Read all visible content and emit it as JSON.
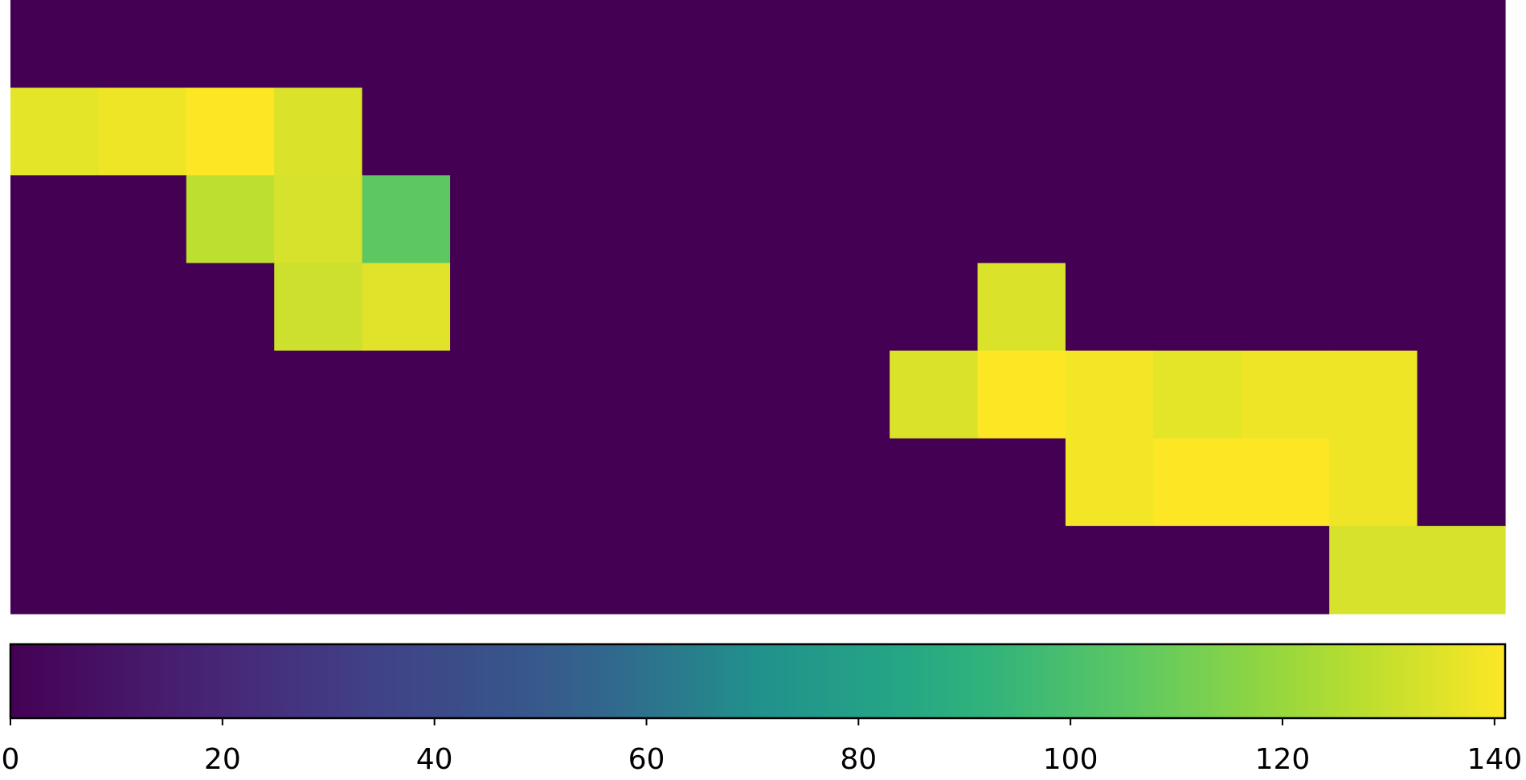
{
  "chart_data": {
    "type": "heatmap",
    "title": "",
    "xlabel": "",
    "ylabel": "",
    "rows": 7,
    "cols": 17,
    "colormap": "viridis",
    "vmin": 0,
    "vmax": 141,
    "values": [
      [
        0,
        0,
        0,
        0,
        0,
        0,
        0,
        0,
        0,
        0,
        0,
        0,
        0,
        0,
        0,
        0,
        0
      ],
      [
        136,
        138,
        141,
        134,
        0,
        0,
        0,
        0,
        0,
        0,
        0,
        0,
        0,
        0,
        0,
        0,
        0
      ],
      [
        0,
        0,
        128,
        133,
        106,
        0,
        0,
        0,
        0,
        0,
        0,
        0,
        0,
        0,
        0,
        0,
        0
      ],
      [
        0,
        0,
        0,
        131,
        135,
        0,
        0,
        0,
        0,
        0,
        0,
        134,
        0,
        0,
        0,
        0,
        0
      ],
      [
        0,
        0,
        0,
        0,
        0,
        0,
        0,
        0,
        0,
        0,
        134,
        141,
        139,
        136,
        138,
        138,
        0
      ],
      [
        0,
        0,
        0,
        0,
        0,
        0,
        0,
        0,
        0,
        0,
        0,
        0,
        139,
        141,
        141,
        138,
        0
      ],
      [
        0,
        0,
        0,
        0,
        0,
        0,
        0,
        0,
        0,
        0,
        0,
        0,
        0,
        0,
        0,
        133,
        133
      ]
    ],
    "colorbar": {
      "orientation": "horizontal",
      "range": [
        0,
        141
      ],
      "ticks": [
        0,
        20,
        40,
        60,
        80,
        100,
        120,
        140
      ],
      "tick_labels": [
        "0",
        "20",
        "40",
        "60",
        "80",
        "100",
        "120",
        "140"
      ]
    },
    "grid": false,
    "legend": "none"
  }
}
